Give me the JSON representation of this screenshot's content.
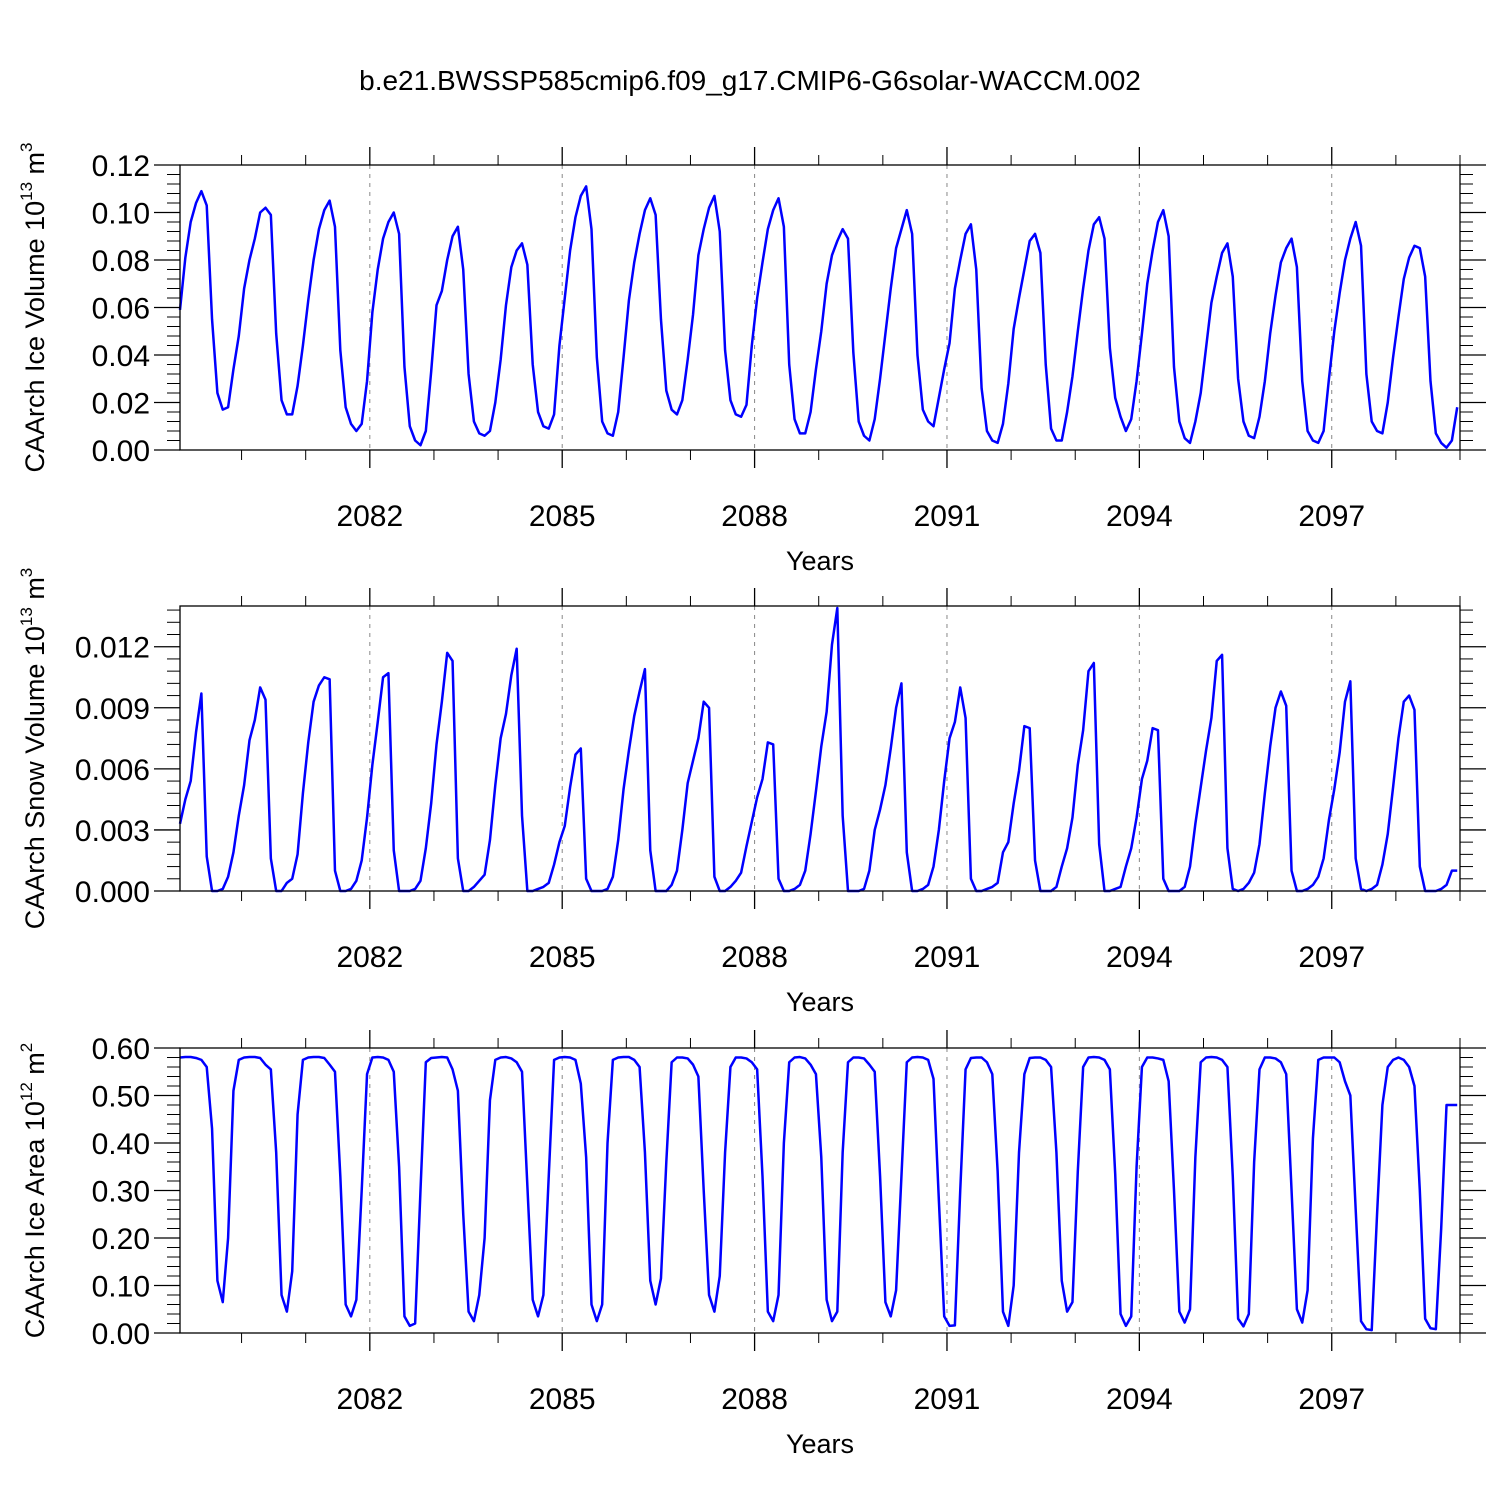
{
  "figure": {
    "title": "b.e21.BWSSP585cmip6.f09_g17.CMIP6-G6solar-WACCM.002"
  },
  "colors": {
    "series": "#0000ff",
    "axis": "#000000",
    "grid": "#888888"
  },
  "chart_data": [
    {
      "type": "line",
      "name": "ice-volume",
      "ylabel": {
        "base": "CAArch Ice Volume 10",
        "exponent": "13",
        "unit": " m",
        "unit_exp": "3"
      },
      "xlabel": "Years",
      "xlim": [
        2079.04,
        2099.0
      ],
      "ylim": [
        0.0,
        0.12
      ],
      "xticks": [
        2082,
        2085,
        2088,
        2091,
        2094,
        2097
      ],
      "xtick_labels": [
        "2082",
        "2085",
        "2088",
        "2091",
        "2094",
        "2097"
      ],
      "yticks": [
        0.0,
        0.02,
        0.04,
        0.06,
        0.08,
        0.1,
        0.12
      ],
      "ytick_labels": [
        "0.00",
        "0.02",
        "0.04",
        "0.06",
        "0.08",
        "0.10",
        "0.12"
      ],
      "x_start": 2079.04,
      "x_step": 0.08333333,
      "values": [
        0.059,
        0.081,
        0.096,
        0.104,
        0.109,
        0.103,
        0.055,
        0.024,
        0.017,
        0.018,
        0.034,
        0.048,
        0.068,
        0.08,
        0.089,
        0.1,
        0.102,
        0.099,
        0.049,
        0.021,
        0.015,
        0.015,
        0.027,
        0.044,
        0.063,
        0.08,
        0.093,
        0.101,
        0.105,
        0.094,
        0.042,
        0.018,
        0.011,
        0.008,
        0.011,
        0.029,
        0.058,
        0.076,
        0.089,
        0.096,
        0.1,
        0.091,
        0.035,
        0.01,
        0.004,
        0.002,
        0.008,
        0.033,
        0.061,
        0.067,
        0.08,
        0.09,
        0.094,
        0.076,
        0.032,
        0.012,
        0.007,
        0.006,
        0.008,
        0.02,
        0.038,
        0.061,
        0.077,
        0.084,
        0.087,
        0.078,
        0.036,
        0.016,
        0.01,
        0.009,
        0.015,
        0.044,
        0.064,
        0.084,
        0.098,
        0.107,
        0.111,
        0.093,
        0.039,
        0.012,
        0.007,
        0.006,
        0.016,
        0.039,
        0.063,
        0.079,
        0.091,
        0.101,
        0.106,
        0.099,
        0.055,
        0.025,
        0.017,
        0.015,
        0.021,
        0.038,
        0.057,
        0.082,
        0.093,
        0.102,
        0.107,
        0.092,
        0.042,
        0.021,
        0.015,
        0.014,
        0.019,
        0.044,
        0.064,
        0.079,
        0.093,
        0.101,
        0.106,
        0.094,
        0.036,
        0.013,
        0.007,
        0.007,
        0.016,
        0.034,
        0.05,
        0.07,
        0.082,
        0.088,
        0.093,
        0.089,
        0.041,
        0.012,
        0.006,
        0.004,
        0.013,
        0.03,
        0.049,
        0.068,
        0.085,
        0.093,
        0.101,
        0.091,
        0.04,
        0.017,
        0.012,
        0.01,
        0.022,
        0.034,
        0.045,
        0.068,
        0.08,
        0.091,
        0.095,
        0.076,
        0.026,
        0.008,
        0.004,
        0.003,
        0.011,
        0.028,
        0.051,
        0.064,
        0.076,
        0.088,
        0.091,
        0.083,
        0.036,
        0.009,
        0.004,
        0.004,
        0.016,
        0.031,
        0.05,
        0.068,
        0.084,
        0.095,
        0.098,
        0.089,
        0.043,
        0.022,
        0.014,
        0.008,
        0.013,
        0.029,
        0.049,
        0.07,
        0.084,
        0.096,
        0.101,
        0.09,
        0.035,
        0.012,
        0.005,
        0.003,
        0.012,
        0.024,
        0.043,
        0.062,
        0.073,
        0.083,
        0.087,
        0.073,
        0.03,
        0.012,
        0.006,
        0.005,
        0.014,
        0.029,
        0.049,
        0.065,
        0.079,
        0.085,
        0.089,
        0.077,
        0.029,
        0.008,
        0.004,
        0.003,
        0.008,
        0.03,
        0.05,
        0.066,
        0.08,
        0.089,
        0.096,
        0.086,
        0.032,
        0.012,
        0.008,
        0.007,
        0.02,
        0.039,
        0.056,
        0.072,
        0.081,
        0.086,
        0.085,
        0.073,
        0.029,
        0.007,
        0.003,
        0.001,
        0.004,
        0.018
      ]
    },
    {
      "type": "line",
      "name": "snow-volume",
      "ylabel": {
        "base": "CAArch Snow Volume 10",
        "exponent": "13",
        "unit": " m",
        "unit_exp": "3"
      },
      "xlabel": "Years",
      "xlim": [
        2079.04,
        2099.0
      ],
      "ylim": [
        0.0,
        0.014
      ],
      "xticks": [
        2082,
        2085,
        2088,
        2091,
        2094,
        2097
      ],
      "xtick_labels": [
        "2082",
        "2085",
        "2088",
        "2091",
        "2094",
        "2097"
      ],
      "yticks": [
        0.0,
        0.003,
        0.006,
        0.009,
        0.012
      ],
      "ytick_labels": [
        "0.000",
        "0.003",
        "0.006",
        "0.009",
        "0.012"
      ],
      "x_start": 2079.04,
      "x_step": 0.08333333,
      "values": [
        0.0033,
        0.0045,
        0.0054,
        0.0078,
        0.0097,
        0.0017,
        0.0,
        0.0,
        0.0001,
        0.0007,
        0.0019,
        0.0037,
        0.0052,
        0.0074,
        0.0084,
        0.01,
        0.0094,
        0.0016,
        0.0,
        0.0,
        0.0004,
        0.0006,
        0.0018,
        0.0048,
        0.0073,
        0.0093,
        0.0101,
        0.0105,
        0.0104,
        0.001,
        0.0,
        0.0,
        0.0001,
        0.0005,
        0.0015,
        0.0036,
        0.0062,
        0.0083,
        0.0105,
        0.0107,
        0.002,
        0.0,
        0.0,
        0.0,
        0.0001,
        0.0005,
        0.0021,
        0.0043,
        0.0072,
        0.0093,
        0.0117,
        0.0113,
        0.0016,
        0.0,
        0.0,
        0.0002,
        0.0005,
        0.0008,
        0.0025,
        0.0052,
        0.0075,
        0.0087,
        0.0106,
        0.0119,
        0.0037,
        0.0,
        0.0,
        0.0001,
        0.0002,
        0.0004,
        0.0013,
        0.0024,
        0.0032,
        0.0051,
        0.0067,
        0.007,
        0.0006,
        0.0,
        0.0,
        0.0,
        0.0001,
        0.0007,
        0.0025,
        0.005,
        0.0069,
        0.0086,
        0.0098,
        0.0109,
        0.002,
        0.0,
        0.0,
        0.0,
        0.0003,
        0.001,
        0.003,
        0.0053,
        0.0064,
        0.0075,
        0.0093,
        0.009,
        0.0007,
        0.0,
        0.0,
        0.0002,
        0.0005,
        0.0009,
        0.0022,
        0.0034,
        0.0046,
        0.0055,
        0.0073,
        0.0072,
        0.0006,
        0.0,
        0.0,
        0.0001,
        0.0003,
        0.001,
        0.0028,
        0.0049,
        0.0071,
        0.0088,
        0.0121,
        0.0139,
        0.0037,
        0.0,
        0.0,
        0.0,
        0.0001,
        0.001,
        0.003,
        0.004,
        0.0052,
        0.007,
        0.009,
        0.0102,
        0.0019,
        0.0,
        0.0,
        0.0001,
        0.0003,
        0.0012,
        0.003,
        0.0054,
        0.0075,
        0.0083,
        0.01,
        0.0085,
        0.0006,
        0.0,
        0.0,
        0.0001,
        0.0002,
        0.0004,
        0.0019,
        0.0024,
        0.0043,
        0.0059,
        0.0081,
        0.008,
        0.0015,
        0.0,
        0.0,
        0.0,
        0.0002,
        0.0012,
        0.0021,
        0.0036,
        0.0062,
        0.0079,
        0.0108,
        0.0112,
        0.0023,
        0.0,
        0.0,
        0.0001,
        0.0002,
        0.0012,
        0.0021,
        0.0036,
        0.0055,
        0.0064,
        0.008,
        0.0079,
        0.0006,
        0.0,
        0.0,
        0.0,
        0.0002,
        0.0012,
        0.0033,
        0.0051,
        0.0069,
        0.0085,
        0.0113,
        0.0116,
        0.0021,
        0.0001,
        0.0,
        0.0001,
        0.0004,
        0.0009,
        0.0023,
        0.0048,
        0.0071,
        0.009,
        0.0098,
        0.0091,
        0.001,
        0.0,
        0.0,
        0.0001,
        0.0003,
        0.0007,
        0.0016,
        0.0035,
        0.005,
        0.0068,
        0.0093,
        0.0103,
        0.0016,
        0.0001,
        0.0,
        0.0001,
        0.0003,
        0.0013,
        0.0028,
        0.0051,
        0.0075,
        0.0093,
        0.0096,
        0.0089,
        0.0012,
        0.0,
        0.0,
        0.0,
        0.0001,
        0.0003,
        0.001,
        0.001
      ]
    },
    {
      "type": "line",
      "name": "ice-area",
      "ylabel": {
        "base": "CAArch Ice Area 10",
        "exponent": "12",
        "unit": " m",
        "unit_exp": "2"
      },
      "xlabel": "Years",
      "xlim": [
        2079.04,
        2099.0
      ],
      "ylim": [
        0.0,
        0.6
      ],
      "xticks": [
        2082,
        2085,
        2088,
        2091,
        2094,
        2097
      ],
      "xtick_labels": [
        "2082",
        "2085",
        "2088",
        "2091",
        "2094",
        "2097"
      ],
      "yticks": [
        0.0,
        0.1,
        0.2,
        0.3,
        0.4,
        0.5,
        0.6
      ],
      "ytick_labels": [
        "0.00",
        "0.10",
        "0.20",
        "0.30",
        "0.40",
        "0.50",
        "0.60"
      ],
      "x_start": 2079.04,
      "x_step": 0.08333333,
      "values": [
        0.58,
        0.581,
        0.581,
        0.579,
        0.575,
        0.56,
        0.43,
        0.11,
        0.065,
        0.2,
        0.51,
        0.575,
        0.58,
        0.581,
        0.581,
        0.579,
        0.565,
        0.555,
        0.38,
        0.08,
        0.045,
        0.13,
        0.46,
        0.575,
        0.58,
        0.581,
        0.581,
        0.579,
        0.565,
        0.55,
        0.33,
        0.06,
        0.035,
        0.07,
        0.3,
        0.545,
        0.58,
        0.581,
        0.58,
        0.575,
        0.55,
        0.35,
        0.035,
        0.015,
        0.02,
        0.3,
        0.57,
        0.579,
        0.58,
        0.581,
        0.58,
        0.555,
        0.51,
        0.25,
        0.045,
        0.025,
        0.08,
        0.2,
        0.49,
        0.575,
        0.58,
        0.581,
        0.578,
        0.57,
        0.55,
        0.31,
        0.07,
        0.035,
        0.08,
        0.33,
        0.575,
        0.58,
        0.581,
        0.58,
        0.575,
        0.525,
        0.37,
        0.06,
        0.025,
        0.06,
        0.4,
        0.575,
        0.58,
        0.581,
        0.581,
        0.575,
        0.56,
        0.38,
        0.11,
        0.06,
        0.115,
        0.36,
        0.57,
        0.58,
        0.58,
        0.578,
        0.565,
        0.54,
        0.3,
        0.08,
        0.045,
        0.12,
        0.38,
        0.56,
        0.58,
        0.58,
        0.578,
        0.57,
        0.555,
        0.33,
        0.045,
        0.025,
        0.08,
        0.4,
        0.57,
        0.58,
        0.581,
        0.578,
        0.565,
        0.545,
        0.37,
        0.07,
        0.025,
        0.045,
        0.38,
        0.57,
        0.58,
        0.58,
        0.578,
        0.565,
        0.55,
        0.33,
        0.065,
        0.035,
        0.09,
        0.33,
        0.57,
        0.58,
        0.581,
        0.58,
        0.575,
        0.535,
        0.28,
        0.035,
        0.015,
        0.016,
        0.3,
        0.555,
        0.579,
        0.58,
        0.58,
        0.57,
        0.545,
        0.34,
        0.045,
        0.015,
        0.1,
        0.38,
        0.545,
        0.579,
        0.58,
        0.58,
        0.575,
        0.56,
        0.38,
        0.11,
        0.045,
        0.065,
        0.34,
        0.56,
        0.58,
        0.581,
        0.58,
        0.575,
        0.555,
        0.335,
        0.04,
        0.015,
        0.035,
        0.35,
        0.56,
        0.58,
        0.58,
        0.578,
        0.575,
        0.53,
        0.3,
        0.045,
        0.022,
        0.05,
        0.37,
        0.57,
        0.58,
        0.581,
        0.58,
        0.575,
        0.56,
        0.33,
        0.03,
        0.014,
        0.04,
        0.36,
        0.555,
        0.58,
        0.58,
        0.578,
        0.57,
        0.545,
        0.3,
        0.05,
        0.022,
        0.09,
        0.41,
        0.575,
        0.58,
        0.58,
        0.58,
        0.57,
        0.53,
        0.5,
        0.26,
        0.025,
        0.008,
        0.006,
        0.25,
        0.48,
        0.56,
        0.575,
        0.58,
        0.575,
        0.56,
        0.52,
        0.3,
        0.03,
        0.01,
        0.008,
        0.22,
        0.48,
        0.48,
        0.48
      ]
    }
  ]
}
